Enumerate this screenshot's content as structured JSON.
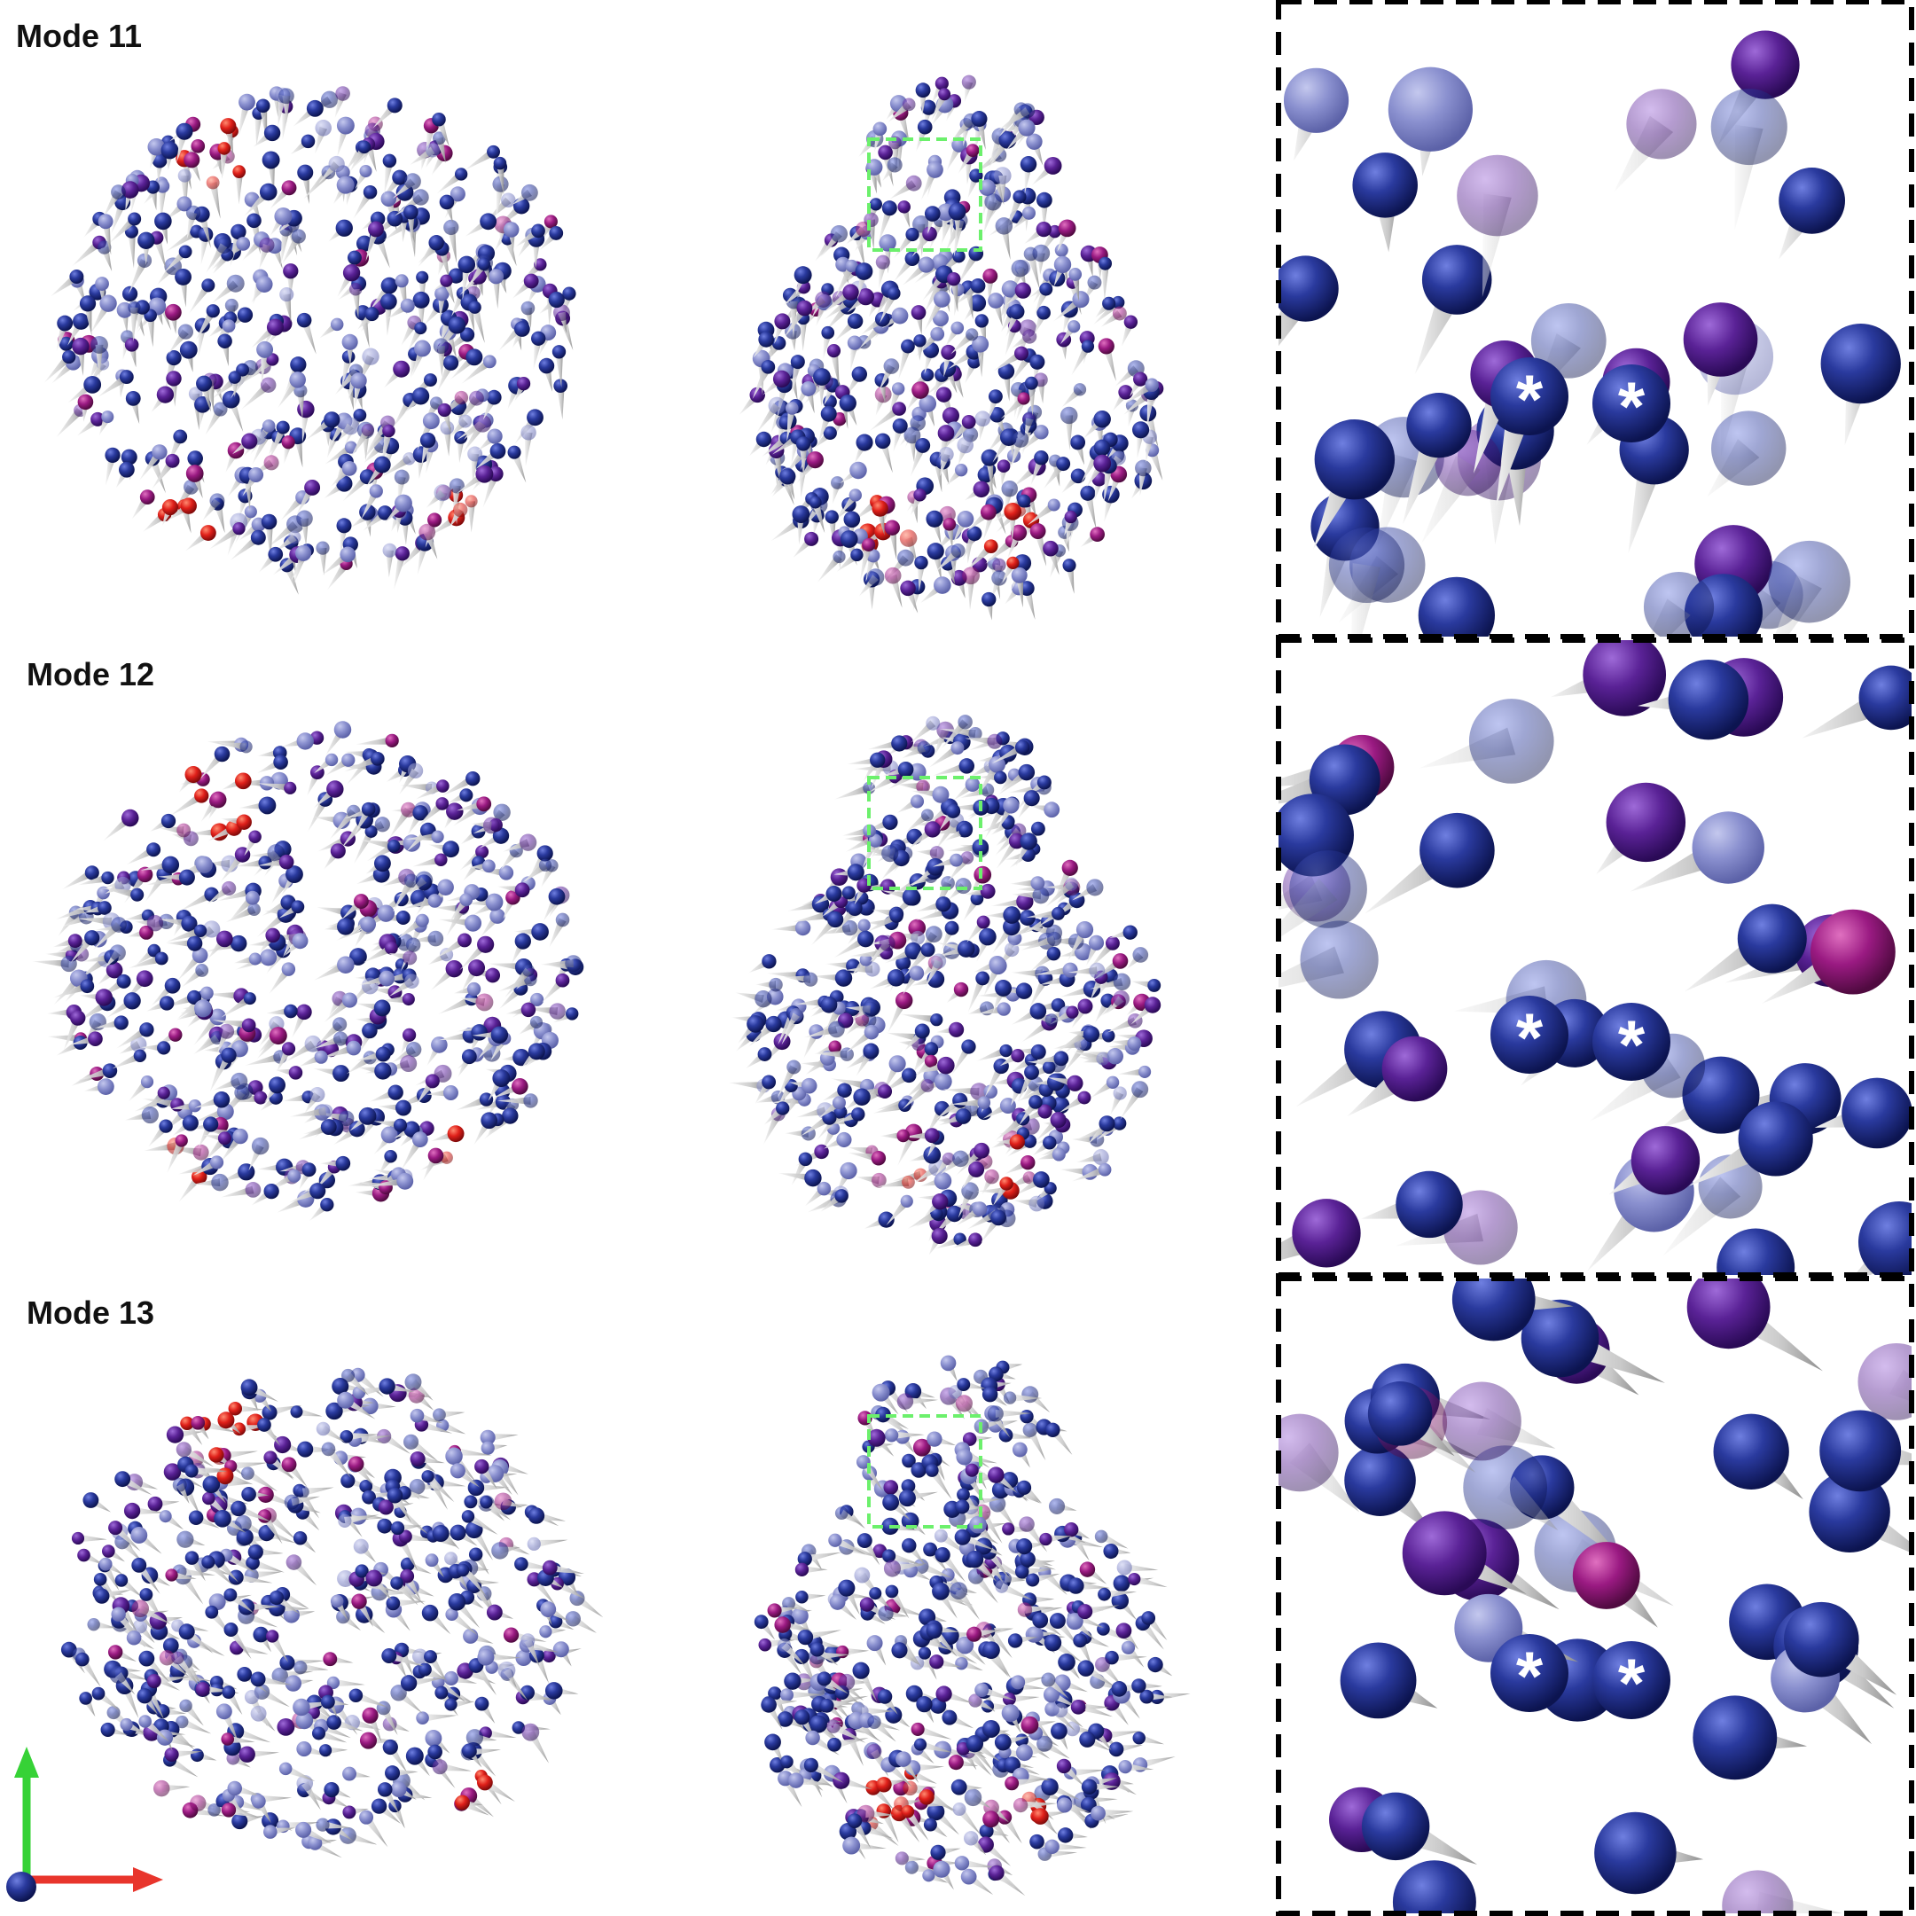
{
  "figure": {
    "rows": [
      {
        "label": "Mode 11",
        "stars": [
          "*",
          "*"
        ]
      },
      {
        "label": "Mode 12",
        "stars": [
          "*",
          "*"
        ]
      },
      {
        "label": "Mode 13",
        "stars": [
          "*",
          "*"
        ]
      }
    ]
  },
  "colors": {
    "residue_low": "#1f2a8a",
    "residue_mid": "#5a2a9a",
    "residue_high": "#e0201a",
    "arrow": "#c9c9c9",
    "highlight_box": "#6cf06c",
    "panel_border": "#000000",
    "axis_x": "#e8352c",
    "axis_y": "#36d236",
    "axis_z": "#1a1f8a"
  }
}
